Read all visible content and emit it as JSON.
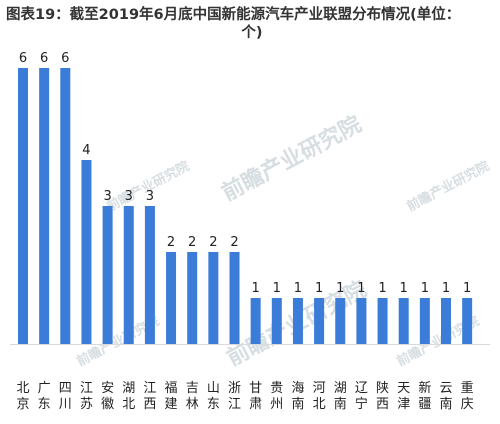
{
  "title": "图表19：截至2019年6月底中国新能源汽车产业联盟分布情况(单位：个)",
  "watermark": "前瞻产业研究院",
  "colors": {
    "bar": "#3a7cd8",
    "text": "#222222"
  },
  "chart_data": {
    "type": "bar",
    "title": "图表19：截至2019年6月底中国新能源汽车产业联盟分布情况(单位：个)",
    "categories": [
      "北京",
      "广东",
      "四川",
      "江苏",
      "安徽",
      "湖北",
      "江西",
      "福建",
      "吉林",
      "山东",
      "浙江",
      "甘肃",
      "贵州",
      "海南",
      "河北",
      "湖南",
      "辽宁",
      "陕西",
      "天津",
      "新疆",
      "云南",
      "重庆"
    ],
    "values": [
      6,
      6,
      6,
      4,
      3,
      3,
      3,
      2,
      2,
      2,
      2,
      1,
      1,
      1,
      1,
      1,
      1,
      1,
      1,
      1,
      1,
      1
    ],
    "ylim": [
      0,
      6
    ],
    "grid": false,
    "legend": "none"
  }
}
